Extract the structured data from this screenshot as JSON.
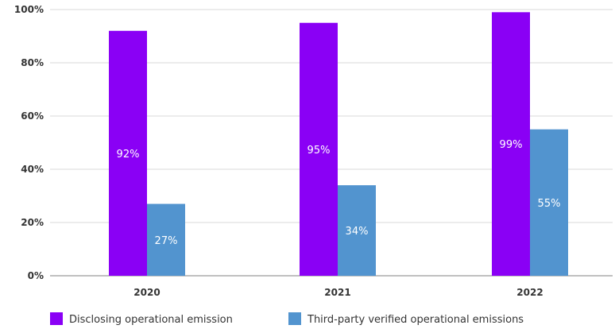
{
  "chart_data": {
    "type": "bar",
    "categories": [
      "2020",
      "2021",
      "2022"
    ],
    "series": [
      {
        "name": "Disclosing operational emission",
        "values": [
          92,
          95,
          99
        ],
        "labels": [
          "92%",
          "95%",
          "99%"
        ],
        "color": "#8a00f5"
      },
      {
        "name": "Third-party verified operational emissions",
        "values": [
          27,
          34,
          55
        ],
        "labels": [
          "27%",
          "34%",
          "55%"
        ],
        "color": "#5294cf"
      }
    ],
    "ylim": [
      0,
      100
    ],
    "yticks": [
      0,
      20,
      40,
      60,
      80,
      100
    ],
    "ytick_labels": [
      "0%",
      "20%",
      "40%",
      "60%",
      "80%",
      "100%"
    ],
    "grid": true,
    "legend": "bottom-left"
  }
}
